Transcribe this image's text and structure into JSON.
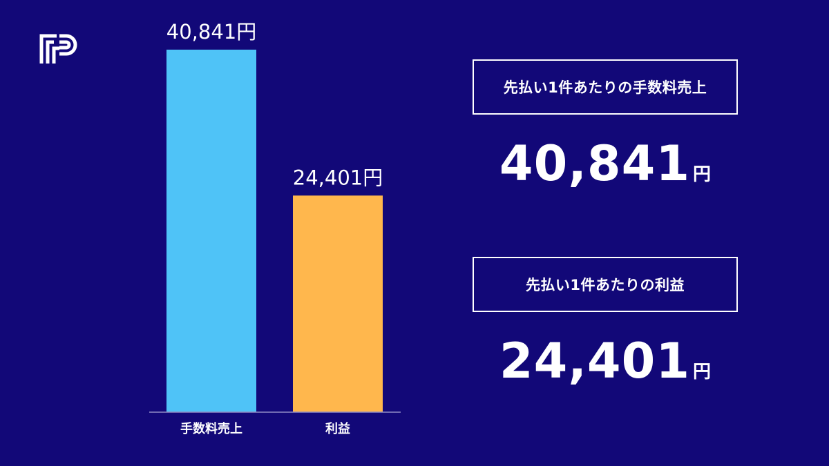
{
  "chart_data": {
    "type": "bar",
    "categories": [
      "手数料売上",
      "利益"
    ],
    "values": [
      40841,
      24401
    ],
    "value_labels": [
      "40,841円",
      "24,401円"
    ],
    "colors": [
      "#4fc3f7",
      "#ffb74d"
    ],
    "ylim": [
      0,
      42000
    ],
    "grid": false,
    "legend": "none"
  },
  "panel": {
    "sales_box_label": "先払い1件あたりの手数料売上",
    "sales_value": "40,841",
    "sales_unit": "円",
    "profit_box_label": "先払い1件あたりの利益",
    "profit_value": "24,401",
    "profit_unit": "円"
  },
  "colors": {
    "background": "#120878",
    "text": "#ffffff",
    "axis": "#8f8ac4"
  },
  "logo": {
    "icon": "brand-logo-icon"
  }
}
